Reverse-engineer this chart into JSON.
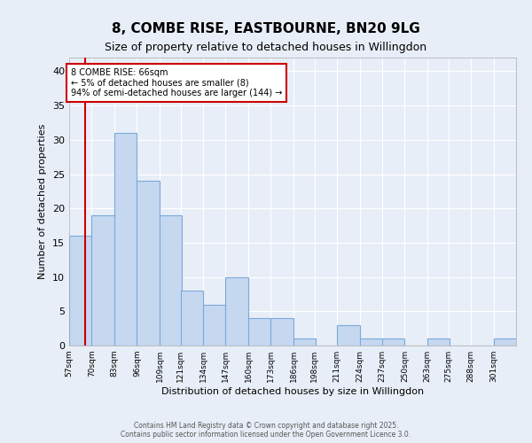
{
  "title": "8, COMBE RISE, EASTBOURNE, BN20 9LG",
  "subtitle": "Size of property relative to detached houses in Willingdon",
  "xlabel": "Distribution of detached houses by size in Willingdon",
  "ylabel": "Number of detached properties",
  "bar_color": "#c5d8f0",
  "bar_edge_color": "#7aaadb",
  "background_color": "#e8eef8",
  "grid_color": "#ffffff",
  "bin_edges": [
    57,
    70,
    83,
    96,
    109,
    121,
    134,
    147,
    160,
    173,
    186,
    198,
    211,
    224,
    237,
    250,
    263,
    275,
    288,
    301,
    314
  ],
  "bar_heights": [
    16,
    19,
    31,
    24,
    19,
    8,
    6,
    10,
    4,
    4,
    1,
    0,
    3,
    1,
    1,
    0,
    1,
    0,
    0,
    1
  ],
  "ylim": [
    0,
    42
  ],
  "yticks": [
    0,
    5,
    10,
    15,
    20,
    25,
    30,
    35,
    40
  ],
  "property_line_x": 66,
  "annotation_title": "8 COMBE RISE: 66sqm",
  "annotation_line1": "← 5% of detached houses are smaller (8)",
  "annotation_line2": "94% of semi-detached houses are larger (144) →",
  "annotation_box_color": "#ffffff",
  "annotation_box_edge_color": "#cc0000",
  "property_line_color": "#cc0000",
  "footer1": "Contains HM Land Registry data © Crown copyright and database right 2025.",
  "footer2": "Contains public sector information licensed under the Open Government Licence 3.0."
}
